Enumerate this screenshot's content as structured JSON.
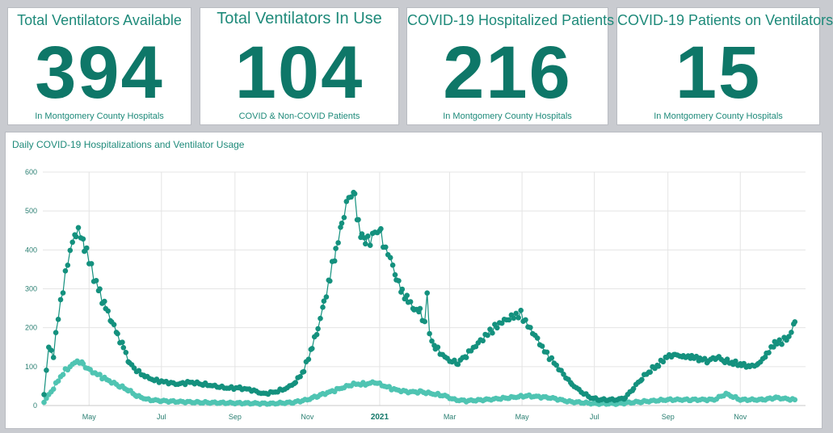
{
  "kpis": [
    {
      "title": "Total Ventilators Available",
      "value": "394",
      "subtitle": "In Montgomery County Hospitals"
    },
    {
      "title": "Total Ventilators In Use",
      "value": "104",
      "subtitle": "COVID & Non-COVID Patients"
    },
    {
      "title": "COVID-19 Hospitalized Patients",
      "value": "216",
      "subtitle": "In Montgomery County Hospitals"
    },
    {
      "title": "COVID-19 Patients on Ventilators",
      "value": "15",
      "subtitle": "In Montgomery County Hospitals"
    }
  ],
  "colors": {
    "primary": "#14917e",
    "secondary": "#4fc4b2",
    "background": "#c9cbd0",
    "grid": "#e4e4e4"
  },
  "chart_data": {
    "type": "scatter",
    "title": "Daily COVID-19 Hospitalizations and Ventilator Usage",
    "xlabel": "",
    "ylabel": "",
    "ylim": [
      0,
      600
    ],
    "y_ticks": [
      0,
      100,
      200,
      300,
      400,
      500,
      600
    ],
    "x_ticks": [
      {
        "date": "2020-05-01",
        "label": "May",
        "bold": false
      },
      {
        "date": "2020-07-01",
        "label": "Jul",
        "bold": false
      },
      {
        "date": "2020-09-01",
        "label": "Sep",
        "bold": false
      },
      {
        "date": "2020-11-01",
        "label": "Nov",
        "bold": false
      },
      {
        "date": "2021-01-01",
        "label": "2021",
        "bold": true
      },
      {
        "date": "2021-03-01",
        "label": "Mar",
        "bold": false
      },
      {
        "date": "2021-05-01",
        "label": "May",
        "bold": false
      },
      {
        "date": "2021-07-01",
        "label": "Jul",
        "bold": false
      },
      {
        "date": "2021-09-01",
        "label": "Sep",
        "bold": false
      },
      {
        "date": "2021-11-01",
        "label": "Nov",
        "bold": false
      }
    ],
    "xlim": [
      "2020-03-23",
      "2021-12-26"
    ],
    "grid": true,
    "series": [
      {
        "color": "#14917e",
        "points": [
          [
            "2020-03-24",
            30
          ],
          [
            "2020-03-28",
            150
          ],
          [
            "2020-04-01",
            130
          ],
          [
            "2020-04-05",
            230
          ],
          [
            "2020-04-09",
            300
          ],
          [
            "2020-04-13",
            370
          ],
          [
            "2020-04-17",
            420
          ],
          [
            "2020-04-20",
            450
          ],
          [
            "2020-04-24",
            440
          ],
          [
            "2020-04-27",
            410
          ],
          [
            "2020-05-01",
            375
          ],
          [
            "2020-05-05",
            330
          ],
          [
            "2020-05-10",
            290
          ],
          [
            "2020-05-15",
            250
          ],
          [
            "2020-05-20",
            220
          ],
          [
            "2020-05-25",
            180
          ],
          [
            "2020-05-30",
            150
          ],
          [
            "2020-06-04",
            110
          ],
          [
            "2020-06-10",
            90
          ],
          [
            "2020-06-17",
            75
          ],
          [
            "2020-06-25",
            65
          ],
          [
            "2020-07-05",
            60
          ],
          [
            "2020-07-15",
            55
          ],
          [
            "2020-07-25",
            60
          ],
          [
            "2020-08-05",
            55
          ],
          [
            "2020-08-15",
            50
          ],
          [
            "2020-08-25",
            45
          ],
          [
            "2020-09-05",
            45
          ],
          [
            "2020-09-15",
            40
          ],
          [
            "2020-09-25",
            30
          ],
          [
            "2020-10-05",
            35
          ],
          [
            "2020-10-15",
            45
          ],
          [
            "2020-10-22",
            60
          ],
          [
            "2020-10-29",
            90
          ],
          [
            "2020-11-05",
            150
          ],
          [
            "2020-11-10",
            200
          ],
          [
            "2020-11-15",
            260
          ],
          [
            "2020-11-20",
            330
          ],
          [
            "2020-11-25",
            400
          ],
          [
            "2020-11-30",
            460
          ],
          [
            "2020-12-04",
            520
          ],
          [
            "2020-12-08",
            545
          ],
          [
            "2020-12-11",
            530
          ],
          [
            "2020-12-14",
            465
          ],
          [
            "2020-12-17",
            440
          ],
          [
            "2020-12-20",
            430
          ],
          [
            "2020-12-24",
            420
          ],
          [
            "2020-12-28",
            450
          ],
          [
            "2021-01-02",
            440
          ],
          [
            "2021-01-06",
            400
          ],
          [
            "2021-01-10",
            380
          ],
          [
            "2021-01-15",
            330
          ],
          [
            "2021-01-20",
            290
          ],
          [
            "2021-01-25",
            270
          ],
          [
            "2021-01-30",
            250
          ],
          [
            "2021-02-04",
            240
          ],
          [
            "2021-02-08",
            210
          ],
          [
            "2021-02-10",
            295
          ],
          [
            "2021-02-12",
            180
          ],
          [
            "2021-02-17",
            150
          ],
          [
            "2021-02-23",
            130
          ],
          [
            "2021-03-01",
            115
          ],
          [
            "2021-03-08",
            110
          ],
          [
            "2021-03-15",
            130
          ],
          [
            "2021-03-25",
            160
          ],
          [
            "2021-04-04",
            190
          ],
          [
            "2021-04-14",
            215
          ],
          [
            "2021-04-24",
            230
          ],
          [
            "2021-04-30",
            235
          ],
          [
            "2021-05-06",
            205
          ],
          [
            "2021-05-12",
            180
          ],
          [
            "2021-05-20",
            140
          ],
          [
            "2021-05-28",
            110
          ],
          [
            "2021-06-05",
            80
          ],
          [
            "2021-06-12",
            55
          ],
          [
            "2021-06-20",
            35
          ],
          [
            "2021-06-28",
            20
          ],
          [
            "2021-07-05",
            15
          ],
          [
            "2021-07-12",
            15
          ],
          [
            "2021-07-20",
            15
          ],
          [
            "2021-07-27",
            20
          ],
          [
            "2021-08-03",
            45
          ],
          [
            "2021-08-10",
            70
          ],
          [
            "2021-08-17",
            90
          ],
          [
            "2021-08-24",
            105
          ],
          [
            "2021-08-31",
            125
          ],
          [
            "2021-09-07",
            130
          ],
          [
            "2021-09-14",
            125
          ],
          [
            "2021-09-21",
            125
          ],
          [
            "2021-09-28",
            120
          ],
          [
            "2021-10-05",
            115
          ],
          [
            "2021-10-12",
            125
          ],
          [
            "2021-10-19",
            115
          ],
          [
            "2021-10-26",
            110
          ],
          [
            "2021-11-02",
            105
          ],
          [
            "2021-11-09",
            100
          ],
          [
            "2021-11-16",
            105
          ],
          [
            "2021-11-23",
            130
          ],
          [
            "2021-11-30",
            160
          ],
          [
            "2021-12-06",
            165
          ],
          [
            "2021-12-12",
            175
          ],
          [
            "2021-12-17",
            215
          ]
        ]
      },
      {
        "color": "#4fc4b2",
        "points": [
          [
            "2020-03-24",
            10
          ],
          [
            "2020-03-30",
            35
          ],
          [
            "2020-04-05",
            65
          ],
          [
            "2020-04-11",
            90
          ],
          [
            "2020-04-17",
            105
          ],
          [
            "2020-04-21",
            115
          ],
          [
            "2020-04-26",
            105
          ],
          [
            "2020-05-02",
            90
          ],
          [
            "2020-05-08",
            80
          ],
          [
            "2020-05-14",
            70
          ],
          [
            "2020-05-20",
            60
          ],
          [
            "2020-05-27",
            50
          ],
          [
            "2020-06-03",
            40
          ],
          [
            "2020-06-10",
            25
          ],
          [
            "2020-06-20",
            15
          ],
          [
            "2020-07-01",
            12
          ],
          [
            "2020-07-15",
            10
          ],
          [
            "2020-08-01",
            8
          ],
          [
            "2020-08-20",
            7
          ],
          [
            "2020-09-10",
            6
          ],
          [
            "2020-10-01",
            5
          ],
          [
            "2020-10-20",
            8
          ],
          [
            "2020-11-01",
            15
          ],
          [
            "2020-11-10",
            25
          ],
          [
            "2020-11-20",
            35
          ],
          [
            "2020-11-30",
            45
          ],
          [
            "2020-12-10",
            55
          ],
          [
            "2020-12-20",
            55
          ],
          [
            "2020-12-28",
            60
          ],
          [
            "2021-01-05",
            50
          ],
          [
            "2021-01-15",
            40
          ],
          [
            "2021-01-25",
            35
          ],
          [
            "2021-02-05",
            35
          ],
          [
            "2021-02-15",
            30
          ],
          [
            "2021-02-25",
            25
          ],
          [
            "2021-03-05",
            15
          ],
          [
            "2021-03-15",
            12
          ],
          [
            "2021-04-01",
            15
          ],
          [
            "2021-04-20",
            20
          ],
          [
            "2021-05-05",
            25
          ],
          [
            "2021-05-25",
            20
          ],
          [
            "2021-06-10",
            10
          ],
          [
            "2021-07-01",
            5
          ],
          [
            "2021-07-20",
            5
          ],
          [
            "2021-08-10",
            10
          ],
          [
            "2021-09-01",
            15
          ],
          [
            "2021-09-20",
            15
          ],
          [
            "2021-10-10",
            15
          ],
          [
            "2021-10-20",
            30
          ],
          [
            "2021-11-01",
            15
          ],
          [
            "2021-11-20",
            15
          ],
          [
            "2021-12-01",
            20
          ],
          [
            "2021-12-17",
            15
          ]
        ]
      }
    ]
  }
}
